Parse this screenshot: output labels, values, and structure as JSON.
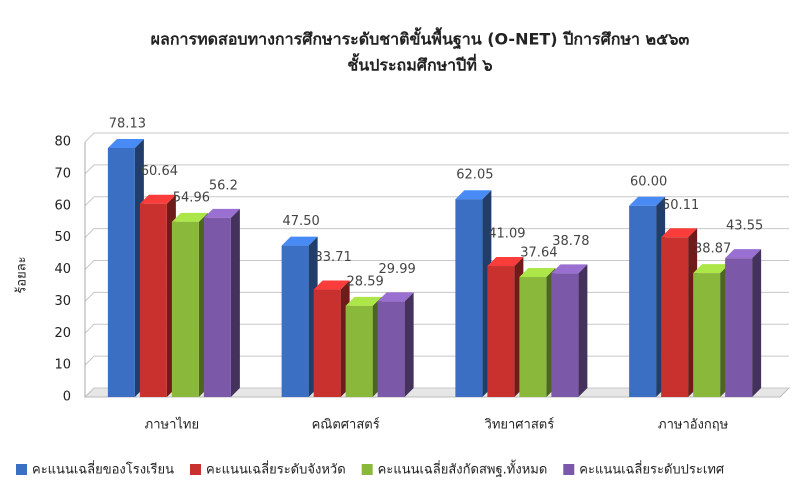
{
  "chart_data": {
    "type": "bar3d",
    "title": "ผลการทดสอบทางการศึกษาระดับชาติขั้นพื้นฐาน (O-NET) ปีการศึกษา ๒๕๖๓",
    "subtitle": "ชั้นประถมศึกษาปีที่  ๖",
    "y_label": "ร้อยละ",
    "categories": [
      "ภาษาไทย",
      "คณิตศาสตร์",
      "วิทยาศาสตร์",
      "ภาษาอังกฤษ"
    ],
    "series": [
      {
        "name": "คะแนนเฉลี่ยของโรงเรียน",
        "color": "#3a6fc4",
        "values": [
          78.13,
          47.5,
          62.05,
          60
        ],
        "value_labels": [
          "78.13",
          "47.50",
          "62.05",
          "60.00"
        ]
      },
      {
        "name": "คะแนนเฉลี่ยระดับจังหวัด",
        "color": "#c8312e",
        "values": [
          60.64,
          33.71,
          41.09,
          50.11
        ]
      },
      {
        "name": "คะแนนเฉลี่ยสังกัดสพฐ.ทั้งหมด",
        "color": "#8ab83a",
        "values": [
          54.96,
          28.59,
          37.64,
          38.87
        ]
      },
      {
        "name": "คะแนนเฉลี่ยระดับประเทศ",
        "color": "#7b59a8",
        "values": [
          56.2,
          29.99,
          38.78,
          43.55
        ]
      }
    ],
    "ylim": [
      0,
      80
    ],
    "yticks": [
      0,
      10,
      20,
      30,
      40,
      50,
      60,
      70,
      80
    ],
    "grid": true,
    "legend": "bottom"
  }
}
